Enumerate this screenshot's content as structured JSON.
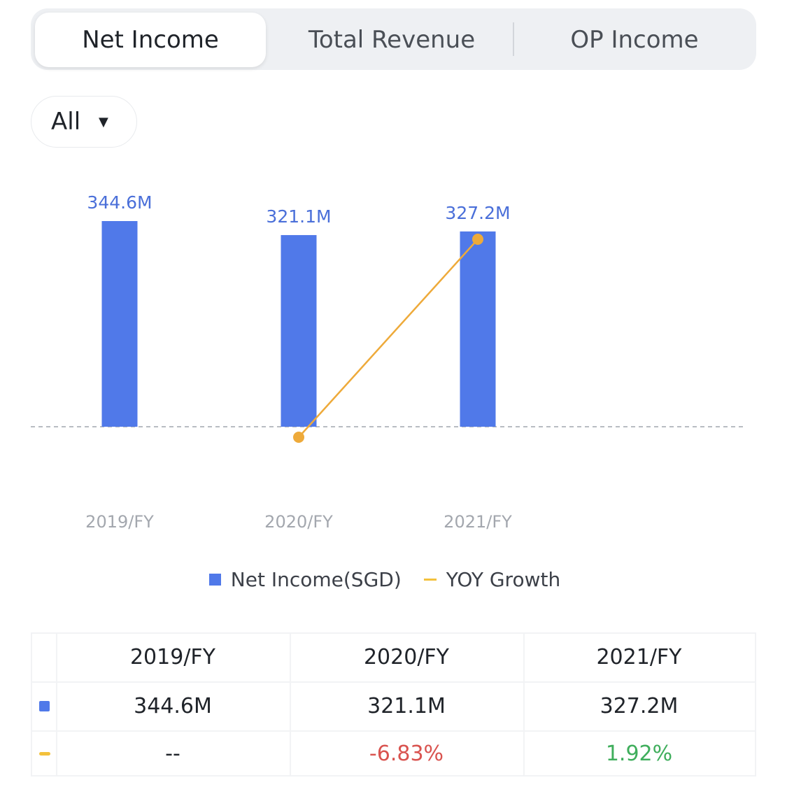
{
  "tabs": [
    {
      "label": "Net Income",
      "active": true
    },
    {
      "label": "Total Revenue",
      "active": false
    },
    {
      "label": "OP Income",
      "active": false
    }
  ],
  "filter": {
    "label": "All",
    "caret": "▼"
  },
  "colors": {
    "bar": "#5079e9",
    "line": "#f3c13c",
    "negative": "#d9534f",
    "positive": "#3fae5c"
  },
  "chart_data": {
    "type": "bar",
    "categories": [
      "2019/FY",
      "2020/FY",
      "2021/FY"
    ],
    "series": [
      {
        "name": "Net Income(SGD)",
        "type": "bar",
        "values": [
          344.6,
          321.1,
          327.2
        ],
        "labels": [
          "344.6M",
          "321.1M",
          "327.2M"
        ]
      },
      {
        "name": "YOY Growth",
        "type": "line",
        "values": [
          null,
          -6.83,
          1.92
        ]
      }
    ],
    "grid": false,
    "legend": "bottom"
  },
  "table": {
    "headers": [
      "2019/FY",
      "2020/FY",
      "2021/FY"
    ],
    "net_income": [
      "344.6M",
      "321.1M",
      "327.2M"
    ],
    "yoy": [
      "--",
      "-6.83%",
      "1.92%"
    ]
  }
}
